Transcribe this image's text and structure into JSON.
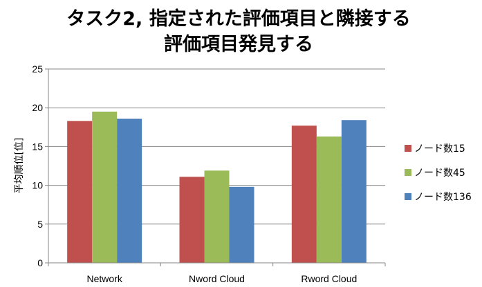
{
  "chart_data": {
    "type": "bar",
    "title_lines": [
      "タスク2, 指定された評価項目と隣接する",
      "評価項目発見する"
    ],
    "ylabel": "平均順位[位]",
    "xlabel": "",
    "categories": [
      "Network",
      "Nword Cloud",
      "Rword Cloud"
    ],
    "series": [
      {
        "name": "ノード数15",
        "color": "#c0504d",
        "values": [
          18.3,
          11.1,
          17.7
        ]
      },
      {
        "name": "ノード数45",
        "color": "#9bbb59",
        "values": [
          19.5,
          11.9,
          16.3
        ]
      },
      {
        "name": "ノード数136",
        "color": "#4f81bd",
        "values": [
          18.6,
          9.8,
          18.4
        ]
      }
    ],
    "ylim": [
      0,
      25
    ],
    "yticks": [
      0,
      5,
      10,
      15,
      20,
      25
    ],
    "grid": true,
    "legend_position": "right"
  }
}
